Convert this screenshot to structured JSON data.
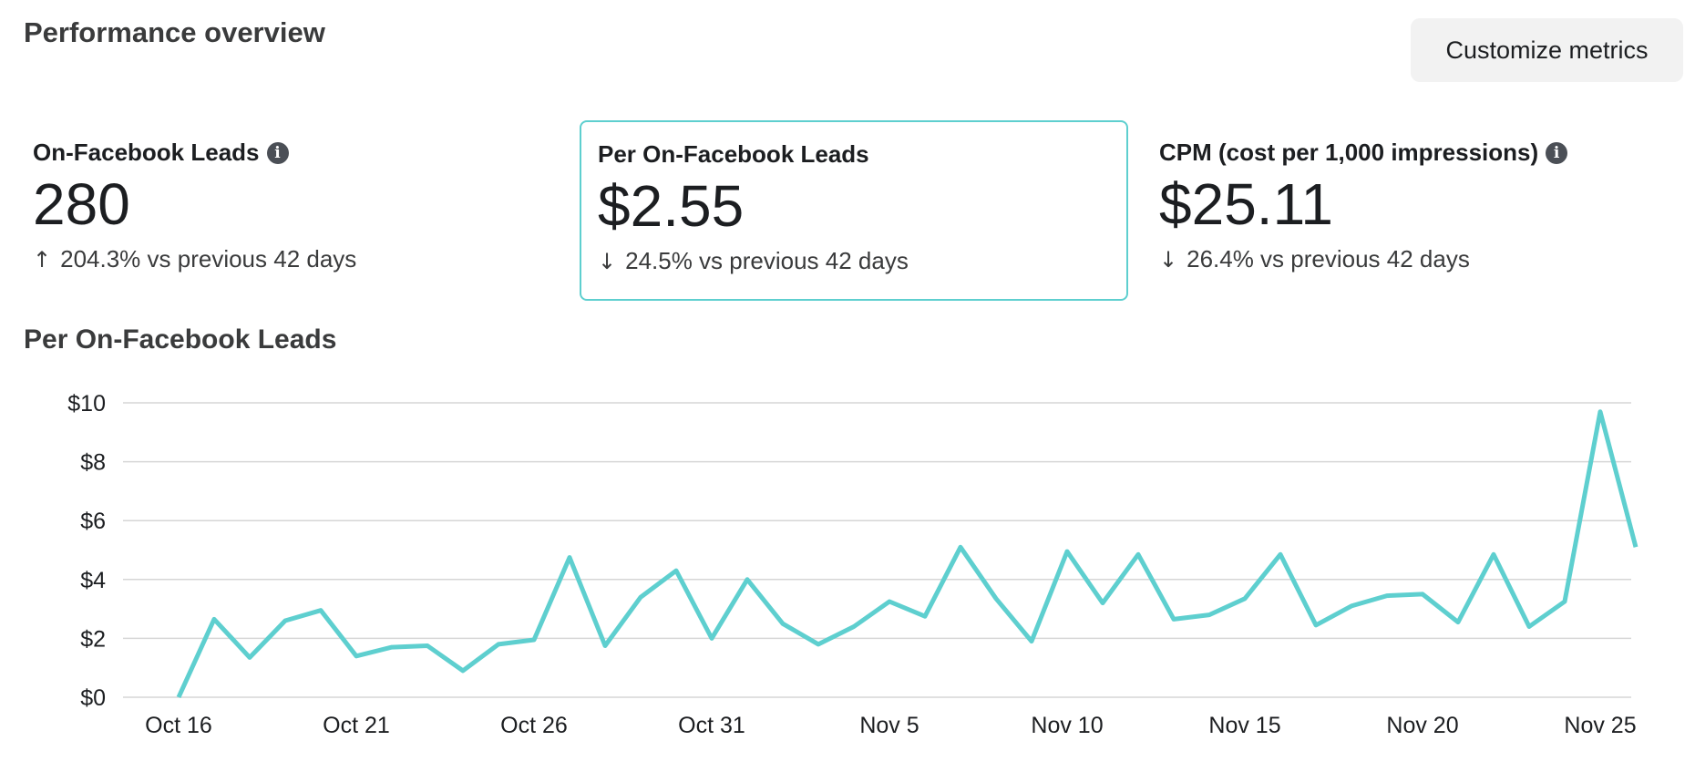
{
  "header": {
    "title": "Performance overview",
    "customize_label": "Customize metrics"
  },
  "cards": [
    {
      "label": "On-Facebook Leads",
      "value": "280",
      "direction": "up",
      "arrow": "↑",
      "delta": "204.3% vs previous 42 days",
      "info": true
    },
    {
      "label": "Per On-Facebook Leads",
      "value": "$2.55",
      "direction": "down",
      "arrow": "↓",
      "delta": "24.5% vs previous 42 days",
      "info": false,
      "selected": true
    },
    {
      "label": "CPM (cost per 1,000 impressions)",
      "value": "$25.11",
      "direction": "down",
      "arrow": "↓",
      "delta": "26.4% vs previous 42 days",
      "info": true
    }
  ],
  "chart_data": {
    "type": "line",
    "title": "Per On-Facebook Leads",
    "line_color": "#5ecfcf",
    "grid": true,
    "ylim": [
      0,
      10
    ],
    "y_ticks": [
      "$0",
      "$2",
      "$4",
      "$6",
      "$8",
      "$10"
    ],
    "x_ticks": [
      "Oct 16",
      "Oct 21",
      "Oct 26",
      "Oct 31",
      "Nov 5",
      "Nov 10",
      "Nov 15",
      "Nov 20",
      "Nov 25"
    ],
    "series": [
      {
        "values": [
          0.0,
          2.65,
          1.35,
          2.6,
          2.95,
          1.4,
          1.7,
          1.75,
          0.9,
          1.8,
          1.95,
          4.75,
          1.75,
          3.4,
          4.3,
          2.0,
          4.0,
          2.5,
          1.8,
          2.4,
          3.25,
          2.75,
          5.1,
          3.35,
          1.9,
          4.95,
          3.2,
          4.85,
          2.65,
          2.8,
          3.35,
          4.85,
          2.45,
          3.1,
          3.45,
          3.5,
          2.55,
          4.85,
          2.4,
          3.25,
          9.7,
          5.1
        ]
      }
    ]
  }
}
